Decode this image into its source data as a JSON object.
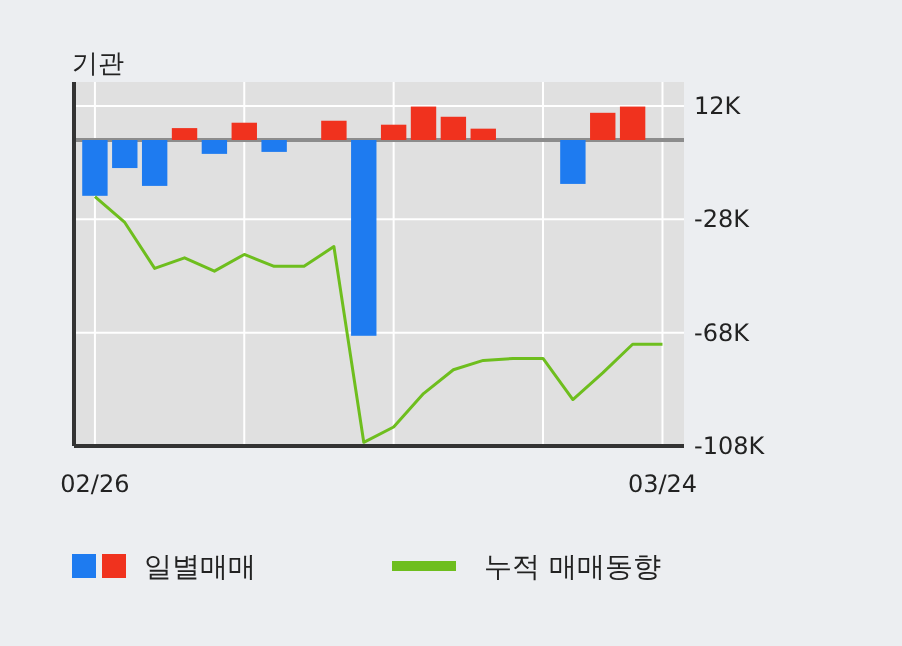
{
  "chart_data": {
    "type": "bar",
    "title": "기관",
    "categories": [
      "02/26",
      null,
      null,
      null,
      null,
      null,
      null,
      null,
      null,
      null,
      null,
      null,
      null,
      null,
      null,
      null,
      null,
      null,
      null,
      "03/24"
    ],
    "series": [
      {
        "name": "일별매매",
        "colors": [
          "#1e7bf0",
          "#1e7bf0",
          "#1e7bf0",
          "#f0321e",
          "#1e7bf0",
          "#f0321e",
          "#1e7bf0",
          "#f0321e",
          "#f0321e",
          "#1e7bf0",
          "#f0321e",
          "#f0321e",
          "#f0321e",
          "#f0321e",
          "#f0321e",
          "#f0321e",
          "#1e7bf0",
          "#f0321e",
          "#f0321e",
          "#f0321e"
        ],
        "values": [
          -19.7,
          -9.9,
          -16.2,
          4.2,
          -4.9,
          6.1,
          -4.2,
          0,
          6.8,
          -69.1,
          5.4,
          11.8,
          8.2,
          4.0,
          0,
          0,
          -15.5,
          9.6,
          11.8,
          0
        ]
      },
      {
        "name": "누적 매매동향",
        "type": "line",
        "color": "#6ebe1e",
        "values": [
          -20,
          -29.1,
          -45.3,
          -41.6,
          -46.3,
          -40.4,
          -44.6,
          -44.6,
          -37.6,
          -106.7,
          -101.3,
          -89.5,
          -81.1,
          -77.8,
          -77.1,
          -77.1,
          -91.6,
          -82.2,
          -72.1,
          -72.1
        ]
      }
    ],
    "ylim": [
      -108,
      12
    ],
    "yticks": [
      {
        "value": 12,
        "label": "12K"
      },
      {
        "value": -28,
        "label": "-28K"
      },
      {
        "value": -68,
        "label": "-68K"
      },
      {
        "value": -108,
        "label": "-108K"
      }
    ],
    "ref_lines": [
      {
        "axis": "y",
        "value": 0,
        "color": "#8c8c8c"
      }
    ],
    "grid": true,
    "legend": "bottom"
  }
}
